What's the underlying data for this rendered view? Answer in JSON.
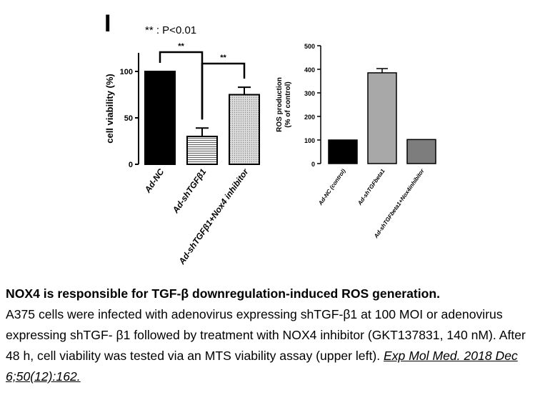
{
  "panel_letter": "I",
  "significance_note": "** : P<0.01",
  "chart_data": [
    {
      "type": "bar",
      "ylabel": "cell viability (%)",
      "categories": [
        "Ad-NC",
        "Ad-shTGFβ1",
        "Ad-shTGFβ1+Nox4 inhibitor"
      ],
      "values": [
        100,
        30,
        75
      ],
      "errors": [
        0,
        9,
        8
      ],
      "ylim": [
        0,
        120
      ],
      "yticks": [
        0,
        50,
        100
      ],
      "bar_colors": [
        "#000000",
        "#eeeeee",
        "#d6d6d6"
      ],
      "bar_patterns": [
        "solid",
        "horizontal-lines",
        "dots"
      ],
      "comparisons": [
        {
          "from": 0,
          "to": 1,
          "label": "**"
        },
        {
          "from": 1,
          "to": 2,
          "label": "**"
        }
      ]
    },
    {
      "type": "bar",
      "ylabel": "ROS production\n(% of control)",
      "categories": [
        "Ad-NC (control)",
        "Ad-shTGFbeta1",
        "Ad-shTGFbeta1+Nox4inhibitor"
      ],
      "values": [
        100,
        385,
        102
      ],
      "errors": [
        0,
        18,
        0
      ],
      "ylim": [
        0,
        500
      ],
      "yticks": [
        0,
        100,
        200,
        300,
        400,
        500
      ],
      "bar_colors": [
        "#000000",
        "#a8a8a8",
        "#7d7d7d"
      ]
    }
  ],
  "caption": {
    "title": "NOX4 is responsible for TGF-β downregulation-induced ROS generation.",
    "body": "A375 cells were infected with adenovirus expressing shTGF-β1 at 100 MOI or adenovirus expressing shTGF- β1 followed by treatment with NOX4 inhibitor (GKT137831, 140 nM). After 48 h, cell viability was tested via an MTS viability assay (upper left). ",
    "citation": "Exp Mol Med. 2018 Dec 6;50(12):162."
  }
}
